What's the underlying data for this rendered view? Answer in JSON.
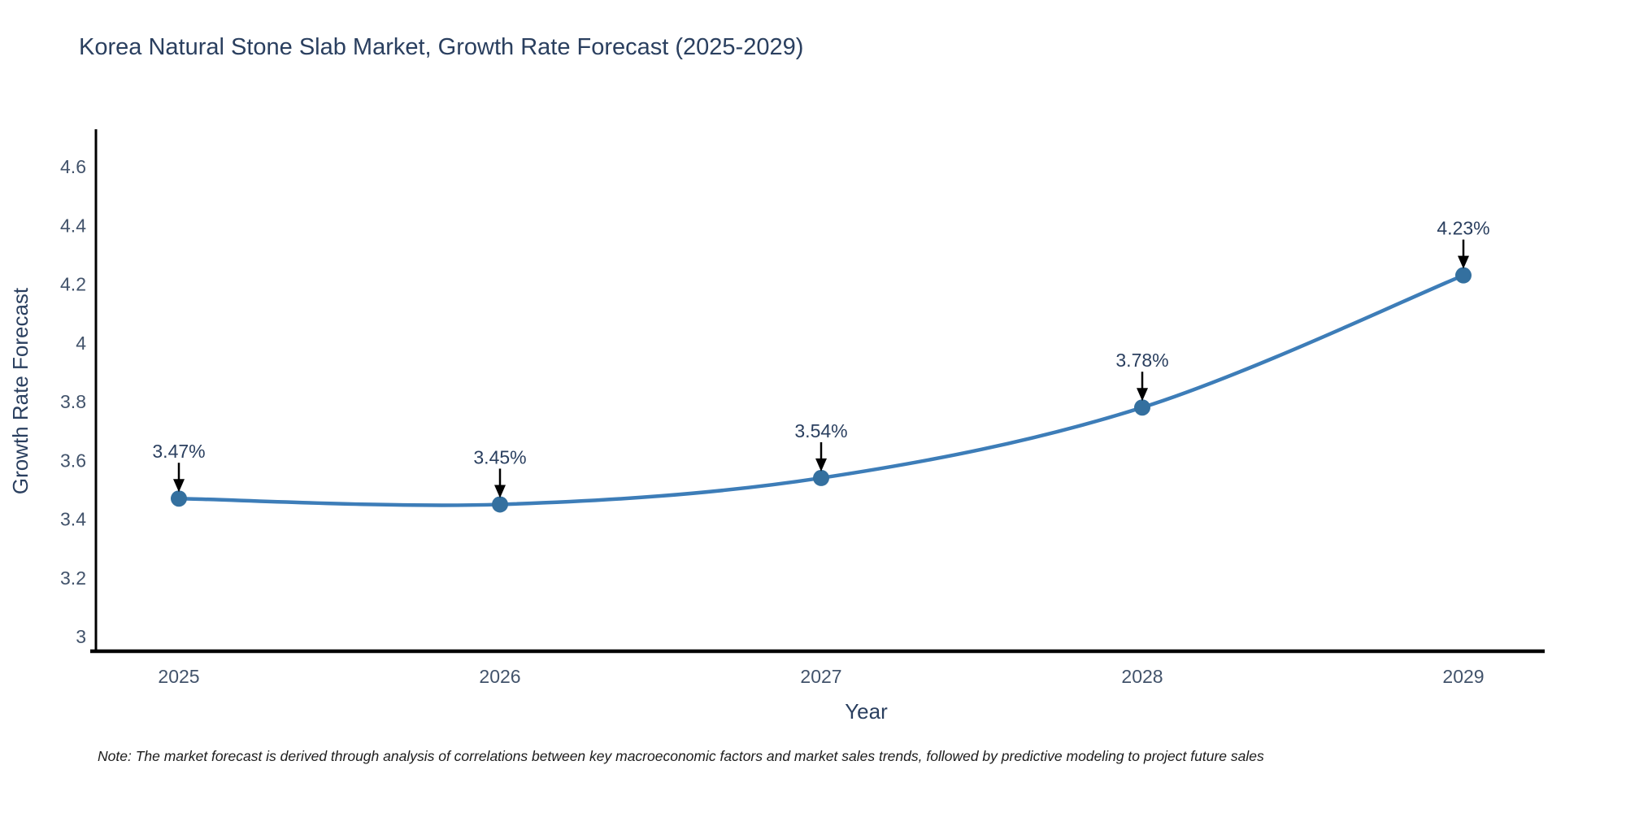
{
  "header": {
    "title": "Korea Natural Stone Slab Market, Growth Rate Forecast (2025-2029)"
  },
  "footer": {
    "note": "Note: The market forecast is derived through analysis of correlations between key macroeconomic factors and market sales trends, followed by predictive modeling to project future sales"
  },
  "chart_data": {
    "type": "line",
    "title": "Korea Natural Stone Slab Market, Growth Rate Forecast (2025-2029)",
    "x": [
      2025,
      2026,
      2027,
      2028,
      2029
    ],
    "xticklabels": [
      "2025",
      "2026",
      "2027",
      "2028",
      "2029"
    ],
    "series": [
      {
        "name": "Growth Rate Forecast",
        "values": [
          3.47,
          3.45,
          3.54,
          3.78,
          4.23
        ]
      }
    ],
    "point_labels": [
      "3.47%",
      "3.45%",
      "3.54%",
      "3.78%",
      "4.23%"
    ],
    "xlabel": "Year",
    "ylabel": "Growth Rate Forecast",
    "ylim": [
      3,
      4.7
    ],
    "yticks": [
      3,
      3.2,
      3.4,
      3.6,
      3.8,
      4,
      4.2,
      4.4,
      4.6
    ],
    "grid": false,
    "legend_position": "none",
    "smooth": true,
    "colors": {
      "line": "#3d7db8",
      "marker": "#34709f",
      "axis": "#000000",
      "tick_label": "#42536b",
      "axis_title": "#2a3f5f",
      "annotation_text": "#2a3f5f",
      "annotation_arrow": "#000000",
      "title": "#2a3f5f",
      "background": "#ffffff"
    }
  }
}
